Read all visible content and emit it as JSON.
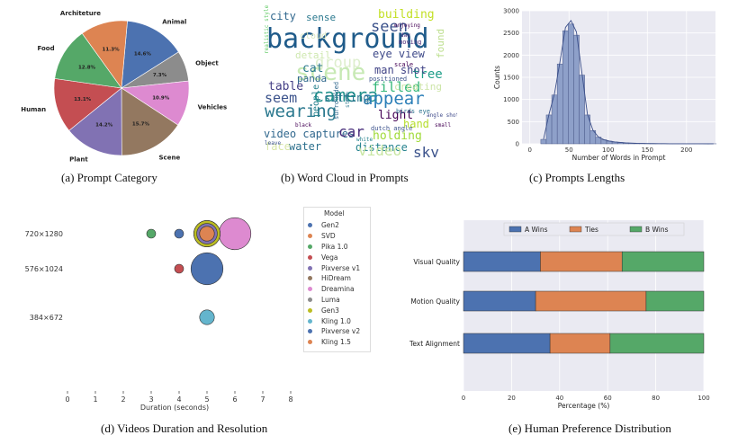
{
  "captions": {
    "a": "(a) Prompt Category",
    "b": "(b) Word Cloud in Prompts",
    "c": "(c) Prompts Lengths",
    "d": "(d) Videos Duration and Resolution",
    "e": "(e) Human Preference Distribution"
  },
  "chart_data": [
    {
      "type": "pie",
      "categories": [
        "Animal",
        "Object",
        "Vehicles",
        "Scene",
        "Plant",
        "Human",
        "Food",
        "Architeture"
      ],
      "values": [
        14.6,
        7.3,
        10.9,
        15.7,
        14.2,
        13.1,
        12.8,
        11.3
      ],
      "value_labels": [
        "14.6%",
        "7.3%",
        "10.9%",
        "15.7%",
        "14.2%",
        "13.1%",
        "12.8%",
        "11.3%"
      ],
      "colors": [
        "#4c72b0",
        "#8c8c8c",
        "#dd8ad0",
        "#937860",
        "#8172b3",
        "#c44e52",
        "#55a868",
        "#dd8452"
      ]
    },
    {
      "type": "wordcloud",
      "words": [
        "background",
        "camera",
        "wearing",
        "appear",
        "scene",
        "seen",
        "video captures",
        "sky",
        "holding",
        "distance",
        "eye view",
        "tree",
        "man shot",
        "filled",
        "light",
        "group",
        "car",
        "water",
        "table",
        "seem",
        "cat",
        "panda",
        "people",
        "building",
        "city",
        "sense",
        "sitting",
        "face",
        "detail",
        "hand",
        "creating",
        "found",
        "cloud",
        "video",
        "dutch angle",
        "birds eye",
        "scale",
        "positioned",
        "surrounded",
        "realistic style",
        "moving",
        "angle shot",
        "small",
        "white",
        "black",
        "leave",
        "style",
        "enjoying",
        "day"
      ]
    },
    {
      "type": "histogram",
      "xlabel": "Number of Words in Prompt",
      "ylabel": "Counts",
      "xticks": [
        0,
        50,
        100,
        150,
        200
      ],
      "yticks": [
        0,
        500,
        1000,
        1500,
        2000,
        2500,
        3000
      ],
      "xlim": [
        -10,
        237
      ],
      "ylim": [
        0,
        3000
      ],
      "bin_width": 7,
      "bin_start": 14,
      "values": [
        100,
        650,
        1100,
        1800,
        2550,
        2700,
        2450,
        1550,
        650,
        300,
        150,
        90,
        60,
        40,
        30,
        20,
        15,
        10,
        8,
        6,
        5,
        4,
        3,
        2,
        2,
        2,
        1,
        1,
        1,
        1,
        0,
        1
      ]
    },
    {
      "type": "scatter",
      "xlabel": "Duration (seconds)",
      "xticks": [
        0,
        1,
        2,
        3,
        4,
        5,
        6,
        7,
        8
      ],
      "xlim": [
        0,
        8
      ],
      "yticks": [
        "720×1280",
        "576×1024",
        "384×672"
      ],
      "legend_title": "Model",
      "series": [
        {
          "name": "Gen2",
          "x": 4,
          "y": "720×1280",
          "count": 1,
          "color": "#4c72b0"
        },
        {
          "name": "SVD",
          "x": 5,
          "y": "720×1280",
          "count": 2,
          "color": "#dd8452"
        },
        {
          "name": "Pika 1.0",
          "x": 3,
          "y": "720×1280",
          "count": 1,
          "color": "#55a868"
        },
        {
          "name": "Vega",
          "x": 4,
          "y": "576×1024",
          "count": 1,
          "color": "#c44e52"
        },
        {
          "name": "Pixverse v1",
          "x": 5,
          "y": "720×1280",
          "count": 3,
          "color": "#8172b3"
        },
        {
          "name": "HiDream",
          "x": 5,
          "y": "720×1280",
          "count": 4,
          "color": "#937860"
        },
        {
          "name": "Dreamina",
          "x": 6,
          "y": "720×1280",
          "count": 5,
          "color": "#dd8ad0"
        },
        {
          "name": "Luma",
          "x": 5,
          "y": "720×1280",
          "count": 4,
          "color": "#8c8c8c"
        },
        {
          "name": "Gen3",
          "x": 5,
          "y": "720×1280",
          "count": 4,
          "color": "#bcbd22"
        },
        {
          "name": "Kling 1.0",
          "x": 5,
          "y": "384×672",
          "count": 2,
          "color": "#64b5cd"
        },
        {
          "name": "Pixverse v2",
          "x": 5,
          "y": "576×1024",
          "count": 5,
          "color": "#4c72b0"
        },
        {
          "name": "Kling 1.5",
          "x": 5,
          "y": "720×1280",
          "count": 2,
          "color": "#dd8452"
        }
      ]
    },
    {
      "type": "bar",
      "orientation": "horizontal",
      "stacked": true,
      "xlabel": "Percentage (%)",
      "xticks": [
        0,
        20,
        40,
        60,
        80,
        100
      ],
      "xlim": [
        0,
        100
      ],
      "categories": [
        "Visual Quality",
        "Motion Quality",
        "Text Alignment"
      ],
      "legend_placement": "top",
      "series": [
        {
          "name": "A Wins",
          "values": [
            32,
            30,
            36
          ],
          "color": "#4c72b0"
        },
        {
          "name": "Ties",
          "values": [
            34,
            46,
            25
          ],
          "color": "#dd8452"
        },
        {
          "name": "B Wins",
          "values": [
            34,
            24,
            39
          ],
          "color": "#55a868"
        }
      ]
    }
  ]
}
